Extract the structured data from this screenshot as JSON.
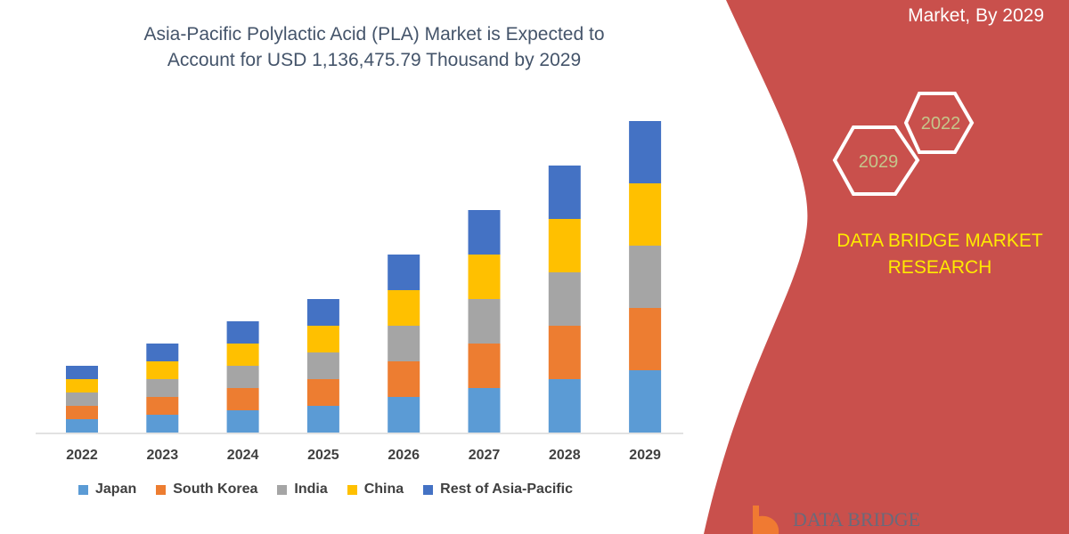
{
  "chart_data": {
    "type": "bar",
    "stacked": true,
    "title": "Asia-Pacific Polylactic Acid (PLA) Market is Expected to Account for USD 1,136,475.79 Thousand by 2029",
    "title_lines": [
      "Asia-Pacific Polylactic Acid (PLA) Market is Expected to",
      "Account for USD 1,136,475.79 Thousand by 2029"
    ],
    "categories": [
      "2022",
      "2023",
      "2024",
      "2025",
      "2026",
      "2027",
      "2028",
      "2029"
    ],
    "series": [
      {
        "name": "Japan",
        "color": "#5b9bd5",
        "values": [
          15,
          20,
          25,
          30,
          40,
          50,
          60,
          70
        ]
      },
      {
        "name": "South Korea",
        "color": "#ed7d31",
        "values": [
          15,
          20,
          25,
          30,
          40,
          50,
          60,
          70
        ]
      },
      {
        "name": "India",
        "color": "#a5a5a5",
        "values": [
          15,
          20,
          25,
          30,
          40,
          50,
          60,
          70
        ]
      },
      {
        "name": "China",
        "color": "#ffc000",
        "values": [
          15,
          20,
          25,
          30,
          40,
          50,
          60,
          70
        ]
      },
      {
        "name": "Rest of Asia-Pacific",
        "color": "#4472c4",
        "values": [
          15,
          20,
          25,
          30,
          40,
          50,
          60,
          70
        ]
      }
    ],
    "xlabel": "",
    "ylabel": "",
    "grid": false,
    "legend": "bottom",
    "yaxis_visible": false
  },
  "side_panel": {
    "title": "Market, By 2029",
    "hex_years": [
      "2022",
      "2029"
    ],
    "brand": "DATA BRIDGE MARKET RESEARCH",
    "logo_text": "DATA BRIDGE",
    "color": "#c9504c"
  }
}
